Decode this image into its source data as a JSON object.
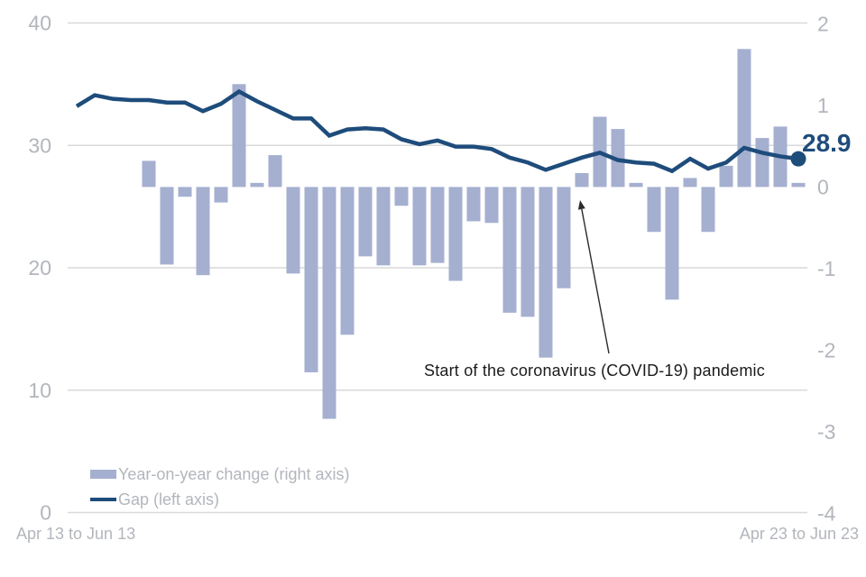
{
  "chart_data": {
    "type": "bar",
    "title": "",
    "x_axis": {
      "left_label": "Apr 13 to Jun 13",
      "right_label": "Apr 23 to Jun 23",
      "points": 41,
      "frequency": "quarterly rolling three-month periods"
    },
    "left_axis": {
      "ticks": [
        40,
        30,
        20,
        10,
        0
      ],
      "range": [
        0,
        40
      ]
    },
    "right_axis": {
      "ticks": [
        2,
        1,
        0,
        -1,
        -2,
        -3,
        -4
      ],
      "range": [
        -4,
        2
      ]
    },
    "grid": "horizontal only",
    "series": [
      {
        "name": "Year-on-year change (right axis)",
        "type": "bar",
        "axis": "right",
        "color": "#a5afd0",
        "values": [
          null,
          null,
          null,
          null,
          0.32,
          -0.95,
          -0.12,
          -1.08,
          -0.19,
          1.26,
          0.05,
          0.39,
          -1.06,
          -2.27,
          -2.84,
          -1.81,
          -0.85,
          -0.96,
          -0.23,
          -0.96,
          -0.93,
          -1.15,
          -0.42,
          -0.44,
          -1.54,
          -1.59,
          -2.09,
          -1.24,
          0.17,
          0.86,
          0.71,
          0.05,
          -0.55,
          -1.38,
          0.11,
          -0.55,
          0.26,
          1.69,
          0.6,
          0.74,
          0.05
        ]
      },
      {
        "name": "Gap (left axis)",
        "type": "line",
        "axis": "left",
        "color": "#1e4c7b",
        "values": [
          33.2,
          34.1,
          33.8,
          33.7,
          33.7,
          33.5,
          33.5,
          32.8,
          33.4,
          34.4,
          33.6,
          32.9,
          32.2,
          32.2,
          30.8,
          31.3,
          31.4,
          31.3,
          30.5,
          30.1,
          30.4,
          29.9,
          29.9,
          29.7,
          29.0,
          28.6,
          28.0,
          28.5,
          29.0,
          29.4,
          28.8,
          28.6,
          28.5,
          27.9,
          28.9,
          28.1,
          28.6,
          29.8,
          29.4,
          29.1,
          28.9
        ]
      }
    ],
    "end_label": "28.9",
    "annotation": {
      "text": "Start of the coronavirus (COVID-19) pandemic",
      "arrow_from": [
        675,
        392
      ],
      "arrow_to": [
        643,
        222
      ]
    },
    "legend_position": "bottom-left"
  },
  "legend": {
    "items": [
      {
        "label": "Year-on-year change (right axis)",
        "swatch": "bar"
      },
      {
        "label": "Gap (left axis)",
        "swatch": "line"
      }
    ]
  },
  "colors": {
    "bar": "#a5afd0",
    "line": "#1e4c7b",
    "gridline": "#d9d9d9",
    "axis_text": "#b2b6bc",
    "annotation_text": "#1b1b1b"
  }
}
